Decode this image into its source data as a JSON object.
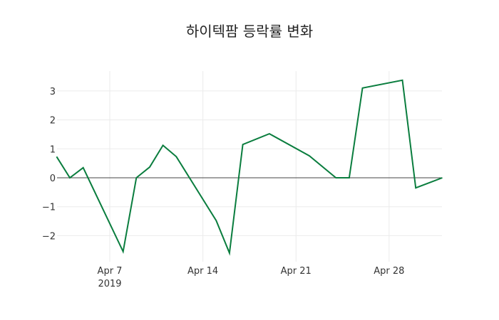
{
  "chart_data": {
    "type": "line",
    "title": "하이텍팜 등락률 변화",
    "xlabel": "",
    "ylabel": "",
    "line_color": "#0a7d3e",
    "grid": true,
    "ylim": [
      -2.9,
      3.7
    ],
    "yticks": [
      -2,
      -1,
      0,
      1,
      2,
      3
    ],
    "ytick_labels": [
      "−2",
      "−1",
      "0",
      "1",
      "2",
      "3"
    ],
    "xticks": [
      "2019-04-07",
      "2019-04-14",
      "2019-04-21",
      "2019-04-28"
    ],
    "xtick_labels": [
      "Apr 7",
      "Apr 14",
      "Apr 21",
      "Apr 28"
    ],
    "xtick_year": "2019",
    "x": [
      "2019-04-03",
      "2019-04-04",
      "2019-04-05",
      "2019-04-08",
      "2019-04-09",
      "2019-04-10",
      "2019-04-11",
      "2019-04-12",
      "2019-04-15",
      "2019-04-16",
      "2019-04-17",
      "2019-04-19",
      "2019-04-22",
      "2019-04-24",
      "2019-04-25",
      "2019-04-26",
      "2019-04-29",
      "2019-04-30",
      "2019-05-02"
    ],
    "values": [
      0.73,
      0.0,
      0.35,
      -2.55,
      0.0,
      0.37,
      1.12,
      0.73,
      -1.48,
      -2.6,
      1.15,
      1.52,
      0.76,
      0.0,
      0.0,
      3.1,
      3.37,
      -0.35,
      0.0
    ]
  }
}
